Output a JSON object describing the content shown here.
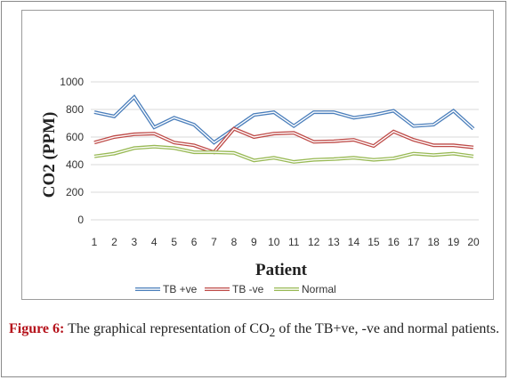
{
  "chart_data": {
    "type": "line",
    "title": "",
    "xlabel": "Patient",
    "ylabel": "CO2 (PPM)",
    "x": [
      1,
      2,
      3,
      4,
      5,
      6,
      7,
      8,
      9,
      10,
      11,
      12,
      13,
      14,
      15,
      16,
      17,
      18,
      19,
      20
    ],
    "x_tick_labels": [
      "1",
      "2",
      "3",
      "4",
      "5",
      "6",
      "7",
      "8",
      "9",
      "10",
      "11",
      "12",
      "13",
      "14",
      "15",
      "16",
      "17",
      "18",
      "19",
      "20"
    ],
    "y_tick_labels": [
      "0",
      "200",
      "400",
      "600",
      "800",
      "1000"
    ],
    "ylim": [
      0,
      1000
    ],
    "grid": "horizontal",
    "legend_position": "bottom",
    "series": [
      {
        "name": "TB +ve",
        "color": "#4a7ebb",
        "values": [
          780,
          750,
          890,
          670,
          740,
          690,
          560,
          660,
          760,
          780,
          680,
          780,
          780,
          740,
          760,
          790,
          680,
          690,
          790,
          660
        ]
      },
      {
        "name": "TB -ve",
        "color": "#be4b48",
        "values": [
          560,
          600,
          620,
          625,
          560,
          540,
          490,
          660,
          600,
          625,
          630,
          565,
          570,
          580,
          535,
          640,
          580,
          540,
          540,
          525
        ]
      },
      {
        "name": "Normal",
        "color": "#98b954",
        "values": [
          460,
          480,
          520,
          530,
          520,
          490,
          490,
          485,
          430,
          450,
          420,
          435,
          440,
          450,
          435,
          445,
          480,
          470,
          480,
          460
        ]
      }
    ]
  },
  "caption": {
    "label": "Figure 6:",
    "text_before_sub": " The graphical representation of CO",
    "subscript": "2",
    "text_after_sub": " of the TB+ve, -ve and normal patients."
  }
}
